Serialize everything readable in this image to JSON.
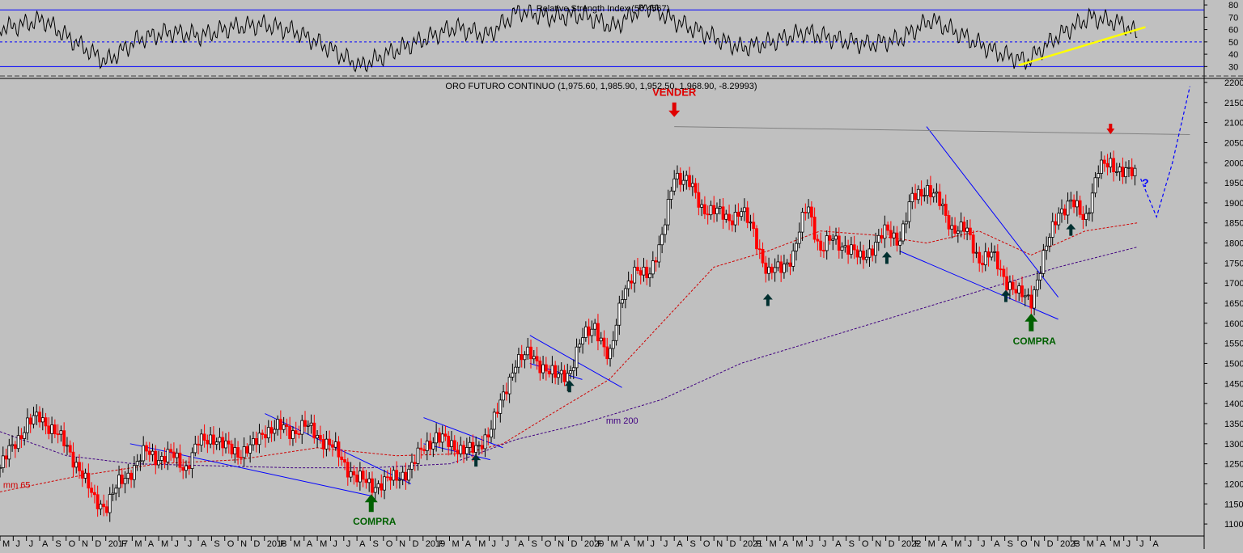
{
  "chart_data": [
    {
      "type": "line",
      "title": "Relative Strength Index (56.4567)",
      "y_ticks": [
        30,
        40,
        50,
        60,
        70,
        80
      ],
      "ylim": [
        23,
        84
      ],
      "levels": [
        30,
        50,
        76
      ],
      "x": [
        2016.4,
        2016.6,
        2016.8,
        2017.0,
        2017.2,
        2017.4,
        2017.6,
        2017.8,
        2018.0,
        2018.2,
        2018.4,
        2018.6,
        2018.8,
        2019.0,
        2019.2,
        2019.4,
        2019.6,
        2019.8,
        2020.0,
        2020.2,
        2020.4,
        2020.6,
        2020.8,
        2021.0,
        2021.2,
        2021.4,
        2021.6,
        2021.8,
        2022.0,
        2022.2,
        2022.4,
        2022.6,
        2022.8,
        2023.0,
        2023.2,
        2023.4,
        2023.5
      ],
      "values": [
        62,
        68,
        50,
        34,
        52,
        58,
        55,
        62,
        64,
        58,
        45,
        30,
        42,
        52,
        62,
        55,
        75,
        70,
        72,
        62,
        80,
        66,
        55,
        45,
        50,
        58,
        52,
        48,
        52,
        68,
        55,
        42,
        34,
        55,
        70,
        65,
        56
      ],
      "annotations": [
        {
          "type": "trendline",
          "color": "#ffff00",
          "from": [
            2022.75,
            31
          ],
          "to": [
            2023.55,
            62
          ]
        }
      ]
    },
    {
      "type": "candlestick",
      "title": "ORO FUTURO CONTINUO (1,975.60, 1,985.90, 1,952.50, 1,968.90, -8.29993)",
      "y_ticks": [
        1100,
        1150,
        1200,
        1250,
        1300,
        1350,
        1400,
        1450,
        1500,
        1550,
        1600,
        1650,
        1700,
        1750,
        1800,
        1850,
        1900,
        1950,
        2000,
        2050,
        2100,
        2150,
        2200
      ],
      "ylim": [
        1070,
        2210
      ],
      "x_ticks": [
        "M",
        "J",
        "J",
        "A",
        "S",
        "O",
        "N",
        "D",
        "2017",
        "F",
        "M",
        "A",
        "M",
        "J",
        "J",
        "A",
        "S",
        "O",
        "N",
        "D",
        "2018",
        "F",
        "M",
        "A",
        "M",
        "J",
        "J",
        "A",
        "S",
        "O",
        "N",
        "D",
        "2019",
        "F",
        "M",
        "A",
        "M",
        "J",
        "J",
        "A",
        "S",
        "O",
        "N",
        "D",
        "2020",
        "F",
        "M",
        "A",
        "M",
        "J",
        "J",
        "A",
        "S",
        "O",
        "N",
        "D",
        "2021",
        "F",
        "M",
        "A",
        "M",
        "J",
        "J",
        "A",
        "S",
        "O",
        "N",
        "D",
        "2022",
        "F",
        "M",
        "A",
        "M",
        "J",
        "J",
        "A",
        "S",
        "O",
        "N",
        "D",
        "2023",
        "F",
        "M",
        "A",
        "M",
        "J",
        "J",
        "A"
      ],
      "x_start": 2016.33,
      "price_path": [
        [
          2016.33,
          1240
        ],
        [
          2016.42,
          1300
        ],
        [
          2016.5,
          1350
        ],
        [
          2016.58,
          1365
        ],
        [
          2016.67,
          1335
        ],
        [
          2016.75,
          1290
        ],
        [
          2016.83,
          1240
        ],
        [
          2016.92,
          1160
        ],
        [
          2017.0,
          1145
        ],
        [
          2017.08,
          1200
        ],
        [
          2017.17,
          1240
        ],
        [
          2017.25,
          1280
        ],
        [
          2017.33,
          1265
        ],
        [
          2017.42,
          1270
        ],
        [
          2017.5,
          1240
        ],
        [
          2017.58,
          1300
        ],
        [
          2017.67,
          1320
        ],
        [
          2017.75,
          1290
        ],
        [
          2017.83,
          1280
        ],
        [
          2017.92,
          1290
        ],
        [
          2018.0,
          1335
        ],
        [
          2018.08,
          1340
        ],
        [
          2018.17,
          1330
        ],
        [
          2018.25,
          1345
        ],
        [
          2018.33,
          1320
        ],
        [
          2018.42,
          1295
        ],
        [
          2018.5,
          1250
        ],
        [
          2018.58,
          1215
        ],
        [
          2018.67,
          1195
        ],
        [
          2018.75,
          1205
        ],
        [
          2018.83,
          1215
        ],
        [
          2018.92,
          1240
        ],
        [
          2019.0,
          1290
        ],
        [
          2019.08,
          1320
        ],
        [
          2019.17,
          1295
        ],
        [
          2019.25,
          1290
        ],
        [
          2019.33,
          1280
        ],
        [
          2019.42,
          1340
        ],
        [
          2019.5,
          1410
        ],
        [
          2019.58,
          1510
        ],
        [
          2019.67,
          1520
        ],
        [
          2019.75,
          1495
        ],
        [
          2019.83,
          1465
        ],
        [
          2019.92,
          1480
        ],
        [
          2020.0,
          1560
        ],
        [
          2020.08,
          1600
        ],
        [
          2020.17,
          1500
        ],
        [
          2020.25,
          1680
        ],
        [
          2020.33,
          1720
        ],
        [
          2020.42,
          1730
        ],
        [
          2020.5,
          1800
        ],
        [
          2020.58,
          1975
        ],
        [
          2020.67,
          1950
        ],
        [
          2020.75,
          1890
        ],
        [
          2020.83,
          1880
        ],
        [
          2020.92,
          1860
        ],
        [
          2021.0,
          1880
        ],
        [
          2021.08,
          1830
        ],
        [
          2021.17,
          1720
        ],
        [
          2021.25,
          1740
        ],
        [
          2021.33,
          1770
        ],
        [
          2021.42,
          1900
        ],
        [
          2021.5,
          1780
        ],
        [
          2021.58,
          1810
        ],
        [
          2021.67,
          1790
        ],
        [
          2021.75,
          1760
        ],
        [
          2021.83,
          1790
        ],
        [
          2021.92,
          1830
        ],
        [
          2022.0,
          1810
        ],
        [
          2022.08,
          1910
        ],
        [
          2022.17,
          1940
        ],
        [
          2022.25,
          1900
        ],
        [
          2022.33,
          1840
        ],
        [
          2022.42,
          1830
        ],
        [
          2022.5,
          1760
        ],
        [
          2022.58,
          1770
        ],
        [
          2022.67,
          1710
        ],
        [
          2022.75,
          1670
        ],
        [
          2022.83,
          1660
        ],
        [
          2022.92,
          1780
        ],
        [
          2023.0,
          1880
        ],
        [
          2023.08,
          1900
        ],
        [
          2023.17,
          1860
        ],
        [
          2023.25,
          1980
        ],
        [
          2023.33,
          2000
        ],
        [
          2023.42,
          1975
        ],
        [
          2023.5,
          1969
        ]
      ],
      "ma65": {
        "name": "mm 65",
        "points": [
          [
            2016.33,
            1180
          ],
          [
            2016.83,
            1220
          ],
          [
            2017.33,
            1250
          ],
          [
            2017.83,
            1260
          ],
          [
            2018.33,
            1290
          ],
          [
            2018.83,
            1270
          ],
          [
            2019.25,
            1275
          ],
          [
            2019.5,
            1300
          ],
          [
            2019.83,
            1380
          ],
          [
            2020.17,
            1460
          ],
          [
            2020.5,
            1600
          ],
          [
            2020.83,
            1740
          ],
          [
            2021.17,
            1780
          ],
          [
            2021.5,
            1830
          ],
          [
            2021.83,
            1820
          ],
          [
            2022.17,
            1800
          ],
          [
            2022.5,
            1830
          ],
          [
            2022.83,
            1770
          ],
          [
            2023.17,
            1830
          ],
          [
            2023.5,
            1850
          ]
        ]
      },
      "ma200": {
        "name": "mm 200",
        "points": [
          [
            2016.33,
            1330
          ],
          [
            2016.75,
            1270
          ],
          [
            2017.17,
            1250
          ],
          [
            2017.67,
            1245
          ],
          [
            2018.17,
            1240
          ],
          [
            2018.67,
            1240
          ],
          [
            2019.17,
            1250
          ],
          [
            2019.58,
            1310
          ],
          [
            2020.0,
            1350
          ],
          [
            2020.5,
            1410
          ],
          [
            2021.0,
            1500
          ],
          [
            2021.5,
            1560
          ],
          [
            2022.0,
            1620
          ],
          [
            2022.5,
            1680
          ],
          [
            2023.0,
            1740
          ],
          [
            2023.5,
            1790
          ]
        ]
      },
      "annotations": [
        {
          "label": "VENDER",
          "color": "#e00000",
          "at": [
            2020.58,
            2130
          ],
          "arrow": "down"
        },
        {
          "label": "COMPRA",
          "color": "#006000",
          "at": [
            2018.67,
            1130
          ],
          "arrow": "up"
        },
        {
          "label": "COMPRA",
          "color": "#006000",
          "at": [
            2022.83,
            1580
          ],
          "arrow": "up"
        },
        {
          "label": "?",
          "color": "#0000ff",
          "at": [
            2023.55,
            1940
          ]
        },
        {
          "label": "mm 200",
          "color": "#400080",
          "at": [
            2020.15,
            1350
          ]
        },
        {
          "label": "mm 65",
          "color": "#d00000",
          "at": [
            2016.35,
            1190
          ]
        }
      ],
      "small_arrows": [
        {
          "color": "#003030",
          "dir": "up",
          "at": [
            2019.33,
            1255
          ]
        },
        {
          "color": "#003030",
          "dir": "up",
          "at": [
            2019.92,
            1440
          ]
        },
        {
          "color": "#003030",
          "dir": "up",
          "at": [
            2021.17,
            1655
          ]
        },
        {
          "color": "#003030",
          "dir": "up",
          "at": [
            2021.92,
            1760
          ]
        },
        {
          "color": "#003030",
          "dir": "up",
          "at": [
            2022.67,
            1665
          ]
        },
        {
          "color": "#003030",
          "dir": "up",
          "at": [
            2023.08,
            1830
          ]
        },
        {
          "color": "#e00000",
          "dir": "down",
          "at": [
            2023.33,
            2085
          ]
        }
      ],
      "trendlines": [
        {
          "color": "#0000ff",
          "from": [
            2017.15,
            1300
          ],
          "to": [
            2018.67,
            1170
          ]
        },
        {
          "color": "#0000ff",
          "from": [
            2018.0,
            1375
          ],
          "to": [
            2018.92,
            1200
          ]
        },
        {
          "color": "#0000ff",
          "from": [
            2019.0,
            1365
          ],
          "to": [
            2019.5,
            1290
          ]
        },
        {
          "color": "#0000ff",
          "from": [
            2019.0,
            1300
          ],
          "to": [
            2019.42,
            1260
          ]
        },
        {
          "color": "#0000ff",
          "from": [
            2019.67,
            1570
          ],
          "to": [
            2020.25,
            1440
          ]
        },
        {
          "color": "#0000ff",
          "from": [
            2019.67,
            1500
          ],
          "to": [
            2020.0,
            1460
          ]
        },
        {
          "color": "#0000ff",
          "from": [
            2022.17,
            2090
          ],
          "to": [
            2023.0,
            1665
          ]
        },
        {
          "color": "#0000ff",
          "from": [
            2022.0,
            1780
          ],
          "to": [
            2023.0,
            1610
          ]
        },
        {
          "color": "#808080",
          "from": [
            2020.58,
            2090
          ],
          "to": [
            2023.83,
            2070
          ]
        }
      ],
      "projection": {
        "color": "#0000ff",
        "points": [
          [
            2023.52,
            1960
          ],
          [
            2023.62,
            1865
          ],
          [
            2023.72,
            2000
          ],
          [
            2023.83,
            2190
          ]
        ]
      }
    }
  ],
  "colors": {
    "background": "#c0c0c0",
    "bull": "#000000",
    "bear": "#ff0000",
    "rsi_levels": "#0000ff"
  }
}
